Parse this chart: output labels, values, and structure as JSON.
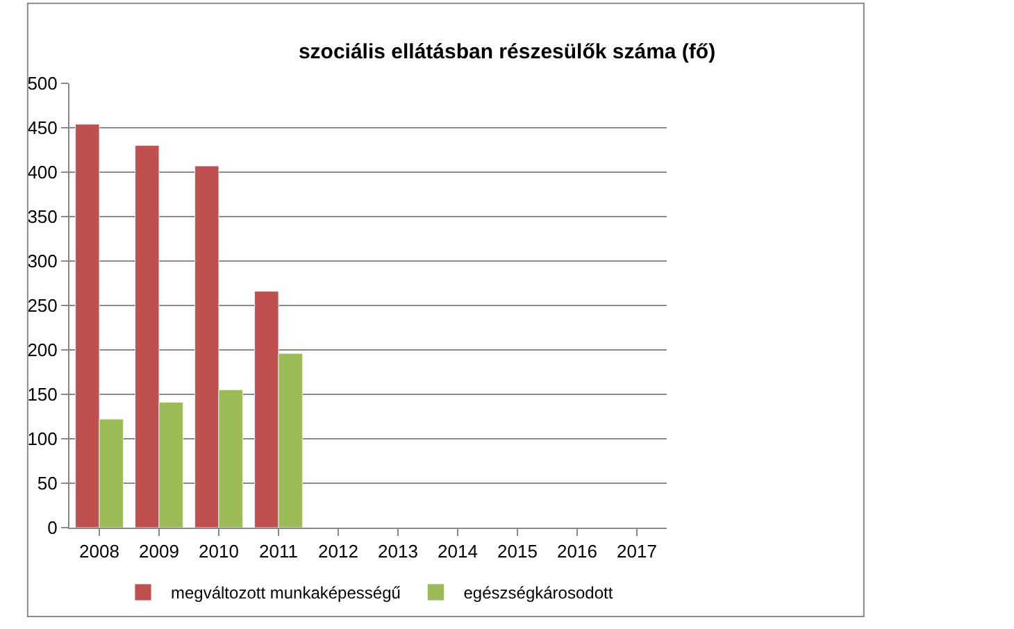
{
  "chart_data": {
    "type": "bar",
    "title": "szociális ellátásban részesülők száma (fő)",
    "categories": [
      "2008",
      "2009",
      "2010",
      "2011",
      "2012",
      "2013",
      "2014",
      "2015",
      "2016",
      "2017"
    ],
    "series": [
      {
        "name": "megváltozott munkaképességű",
        "color": "#c0504d",
        "values": [
          454,
          430,
          407,
          266,
          null,
          null,
          null,
          null,
          null,
          null
        ]
      },
      {
        "name": "egészségkárosodott",
        "color": "#9bbb59",
        "values": [
          122,
          141,
          155,
          196,
          null,
          null,
          null,
          null,
          null,
          null
        ]
      }
    ],
    "ylim": [
      0,
      500
    ],
    "yticks": [
      0,
      50,
      100,
      150,
      200,
      250,
      300,
      350,
      400,
      450,
      500
    ],
    "grid": "y",
    "legend": "bottom"
  }
}
